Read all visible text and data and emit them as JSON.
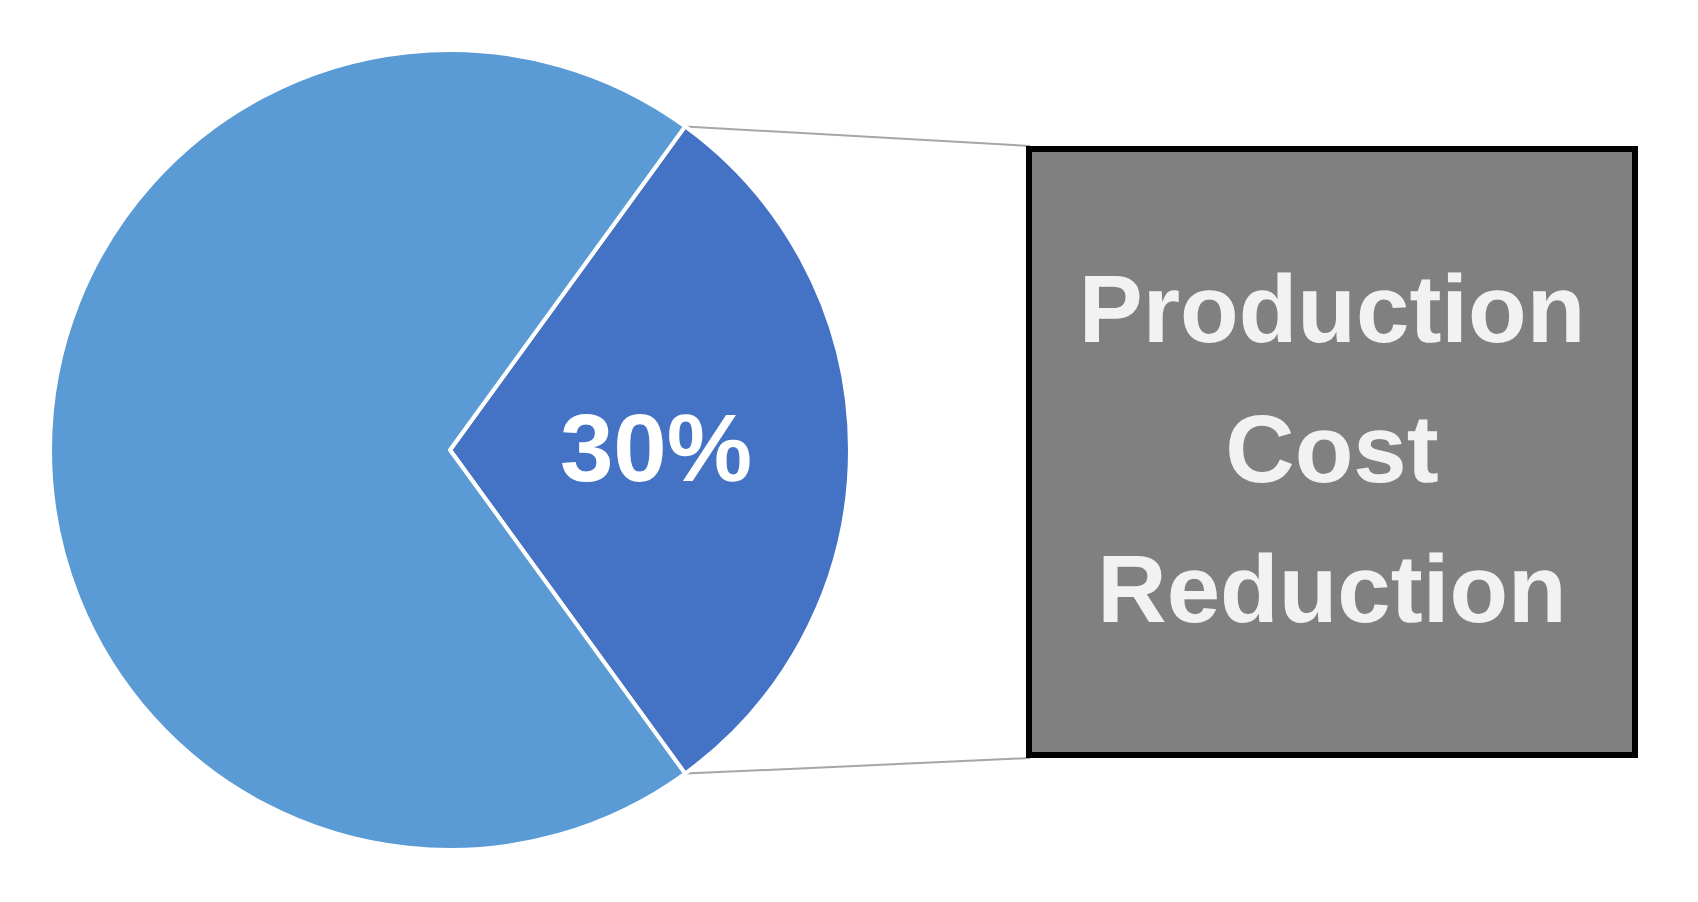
{
  "chart_data": {
    "type": "pie",
    "categories": [
      "Production Cost Reduction",
      null
    ],
    "values": [
      30,
      70
    ],
    "colors": [
      "#4472c4",
      "#5b9bd5"
    ],
    "value_labels": [
      "30%",
      null
    ]
  }
}
